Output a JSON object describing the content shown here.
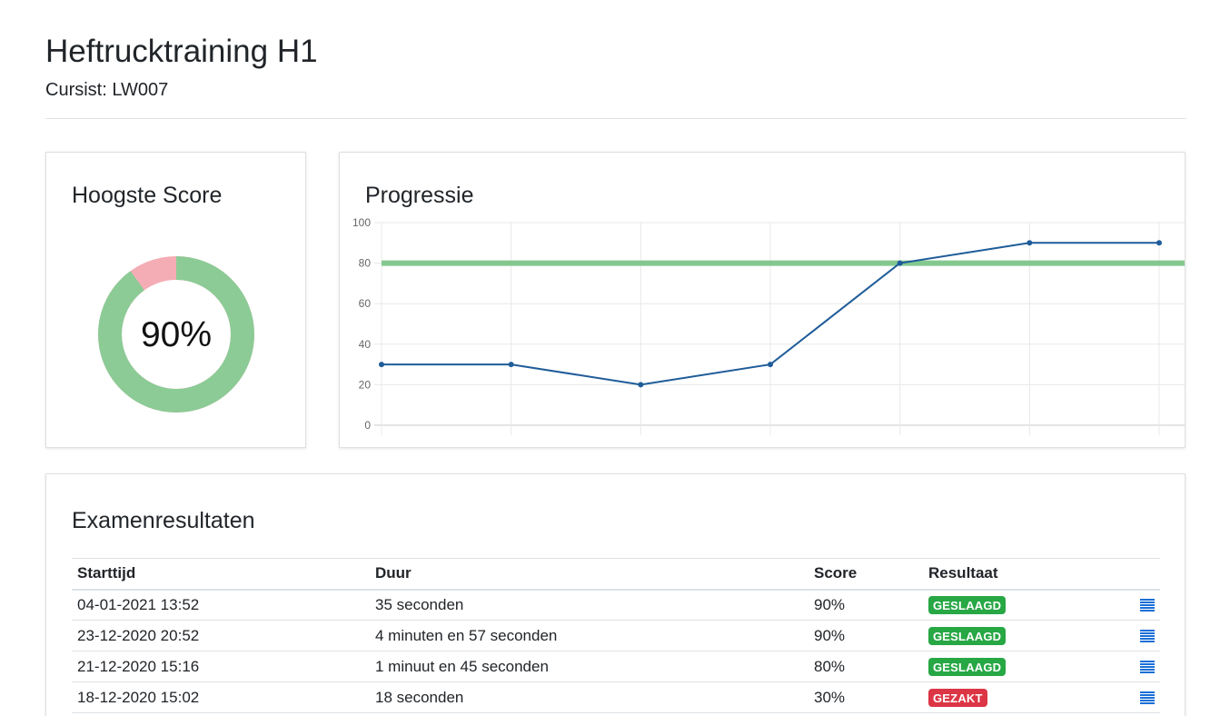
{
  "header": {
    "title": "Heftrucktraining H1",
    "subtitle": "Cursist: LW007"
  },
  "score_card": {
    "title": "Hoogste Score",
    "value_label": "90%",
    "value": 90,
    "colors": {
      "score": "#8ccb96",
      "remaining": "#f4adb5"
    }
  },
  "progress_card": {
    "title": "Progressie"
  },
  "chart_data": {
    "type": "line",
    "title": "",
    "xlabel": "",
    "ylabel": "",
    "ylim": [
      0,
      100
    ],
    "yticks": [
      0,
      20,
      40,
      60,
      80,
      100
    ],
    "x": [
      1,
      2,
      3,
      4,
      5,
      6,
      7
    ],
    "series": [
      {
        "values": [
          30,
          30,
          20,
          30,
          80,
          90,
          90
        ],
        "color": "#1f5c99"
      }
    ],
    "threshold": {
      "value": 80,
      "color": "#7cc589"
    },
    "grid": true,
    "legend": "none"
  },
  "results": {
    "title": "Examenresultaten",
    "columns": [
      "Starttijd",
      "Duur",
      "Score",
      "Resultaat"
    ],
    "rows": [
      {
        "start": "04-01-2021 13:52",
        "duur": "35 seconden",
        "score": "90%",
        "result": "GESLAAGD",
        "status": "pass"
      },
      {
        "start": "23-12-2020 20:52",
        "duur": "4 minuten en 57 seconden",
        "score": "90%",
        "result": "GESLAAGD",
        "status": "pass"
      },
      {
        "start": "21-12-2020 15:16",
        "duur": "1 minuut en 45 seconden",
        "score": "80%",
        "result": "GESLAAGD",
        "status": "pass"
      },
      {
        "start": "18-12-2020 15:02",
        "duur": "18 seconden",
        "score": "30%",
        "result": "GEZAKT",
        "status": "fail"
      }
    ],
    "action_icon": "list-icon",
    "colors": {
      "pass": "#28a745",
      "fail": "#dc3545",
      "icon": "#1a6fd6"
    }
  }
}
